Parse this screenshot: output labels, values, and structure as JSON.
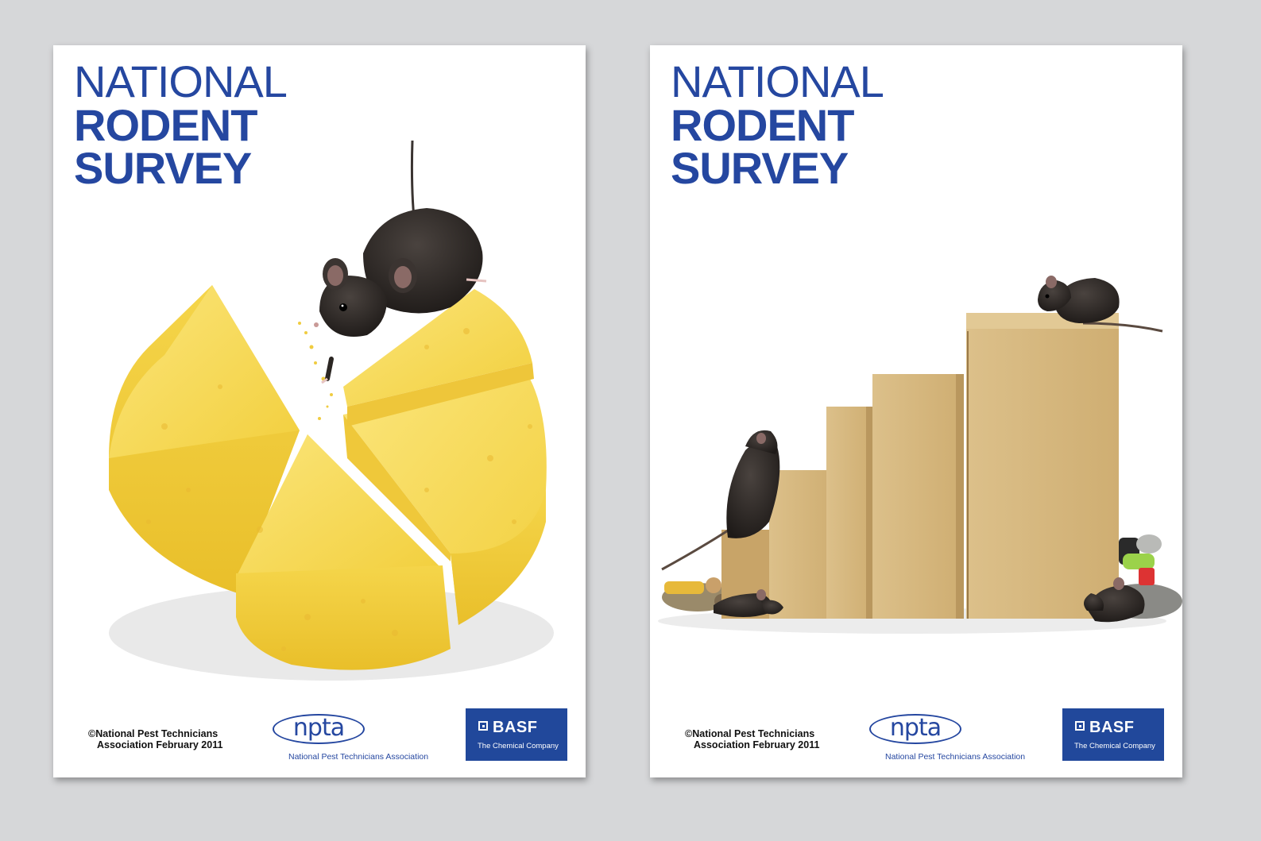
{
  "covers": [
    {
      "title": {
        "line1": "NATIONAL",
        "line2": "RODENT",
        "line3": "SURVEY"
      },
      "copyright": {
        "line1": "©National Pest Technicians",
        "line2": "Association February 2011"
      },
      "npta": {
        "mark": "npta",
        "name": "National Pest Technicians Association"
      },
      "basf": {
        "word": "BASF",
        "tagline": "The Chemical Company"
      }
    },
    {
      "title": {
        "line1": "NATIONAL",
        "line2": "RODENT",
        "line3": "SURVEY"
      },
      "copyright": {
        "line1": "©National Pest Technicians",
        "line2": "Association February 2011"
      },
      "npta": {
        "mark": "npta",
        "name": "National Pest Technicians Association"
      },
      "basf": {
        "word": "BASF",
        "tagline": "The Chemical Company"
      }
    }
  ],
  "colors": {
    "background": "#d6d7d9",
    "title_blue": "#2547a0",
    "basf_blue": "#21489b",
    "cheese": "#f4d54a",
    "cardboard": "#d9b97d",
    "mouse": "#2b2623"
  },
  "illustrations": {
    "left": "mouse-on-cheese-pie-icon",
    "right": "mice-on-cardboard-bar-chart-icon"
  }
}
